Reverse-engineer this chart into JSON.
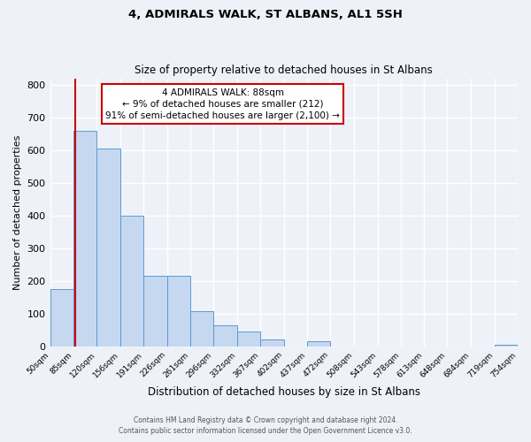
{
  "title": "4, ADMIRALS WALK, ST ALBANS, AL1 5SH",
  "subtitle": "Size of property relative to detached houses in St Albans",
  "xlabel": "Distribution of detached houses by size in St Albans",
  "ylabel": "Number of detached properties",
  "bin_edges": [
    50,
    85,
    120,
    156,
    191,
    226,
    261,
    296,
    332,
    367,
    402,
    437,
    472,
    508,
    543,
    578,
    613,
    648,
    684,
    719,
    754
  ],
  "bar_heights": [
    175,
    660,
    605,
    400,
    215,
    215,
    108,
    65,
    46,
    20,
    0,
    15,
    0,
    0,
    0,
    0,
    0,
    0,
    0,
    5
  ],
  "tick_labels": [
    "50sqm",
    "85sqm",
    "120sqm",
    "156sqm",
    "191sqm",
    "226sqm",
    "261sqm",
    "296sqm",
    "332sqm",
    "367sqm",
    "402sqm",
    "437sqm",
    "472sqm",
    "508sqm",
    "543sqm",
    "578sqm",
    "613sqm",
    "648sqm",
    "684sqm",
    "719sqm",
    "754sqm"
  ],
  "property_size": 88,
  "vline_color": "#cc0000",
  "bar_fill_color": "#c5d8f0",
  "bar_edge_color": "#5b9bd5",
  "ylim": [
    0,
    820
  ],
  "yticks": [
    0,
    100,
    200,
    300,
    400,
    500,
    600,
    700,
    800
  ],
  "annotation_text": "4 ADMIRALS WALK: 88sqm\n← 9% of detached houses are smaller (212)\n91% of semi-detached houses are larger (2,100) →",
  "annotation_box_edge": "#cc0000",
  "background_color": "#eef2f8",
  "grid_color": "#ffffff",
  "footer_line1": "Contains HM Land Registry data © Crown copyright and database right 2024.",
  "footer_line2": "Contains public sector information licensed under the Open Government Licence v3.0."
}
